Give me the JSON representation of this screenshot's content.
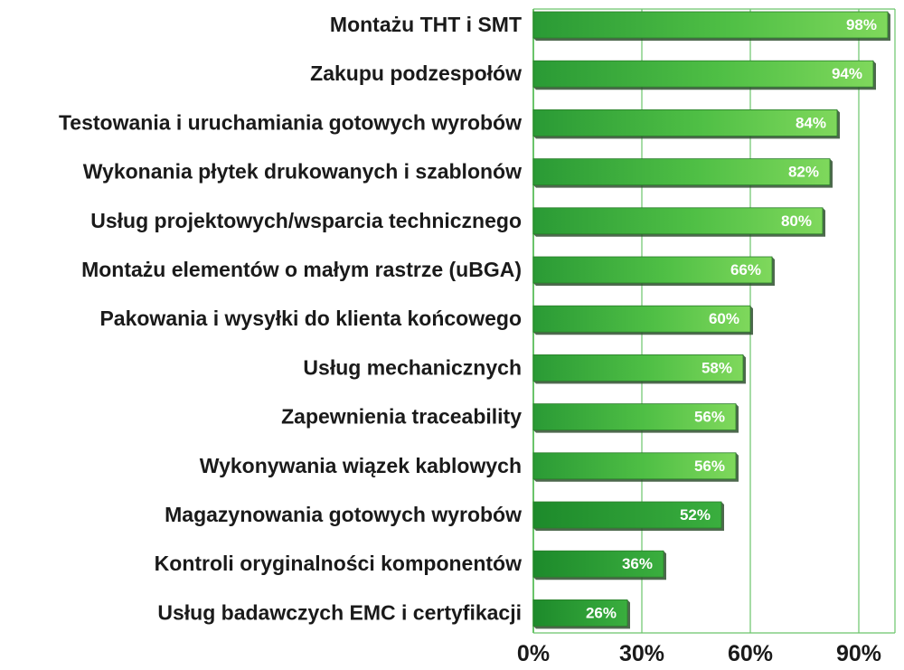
{
  "chart_data": {
    "type": "bar",
    "orientation": "horizontal",
    "categories": [
      "Montażu THT i SMT",
      "Zakupu podzespołów",
      "Testowania i uruchamiania gotowych wyrobów",
      "Wykonania płytek drukowanych i szablonów",
      "Usług projektowych/wsparcia technicznego",
      "Montażu elementów o małym rastrze (uBGA)",
      "Pakowania i wysyłki do klienta końcowego",
      "Usług mechanicznych",
      "Zapewnienia traceability",
      "Wykonywania wiązek kablowych",
      "Magazynowania gotowych wyrobów",
      "Kontroli oryginalności komponentów",
      "Usług badawczych EMC i certyfikacji"
    ],
    "values": [
      98,
      94,
      84,
      82,
      80,
      66,
      60,
      58,
      56,
      56,
      52,
      36,
      26
    ],
    "value_labels": [
      "98%",
      "94%",
      "84%",
      "82%",
      "80%",
      "66%",
      "60%",
      "58%",
      "56%",
      "56%",
      "52%",
      "36%",
      "26%"
    ],
    "xlim": [
      0,
      100
    ],
    "xticks": [
      0,
      30,
      60,
      90
    ],
    "xtick_labels": [
      "0%",
      "30%",
      "60%",
      "90%"
    ],
    "grid": "vertical",
    "colors": {
      "bar_light": "#7fd85c",
      "bar_dark": "#1f8f2c",
      "bar_shadow": "#2f4f2f",
      "grid": "#6ac46a",
      "text": "#1a1a1a"
    }
  }
}
